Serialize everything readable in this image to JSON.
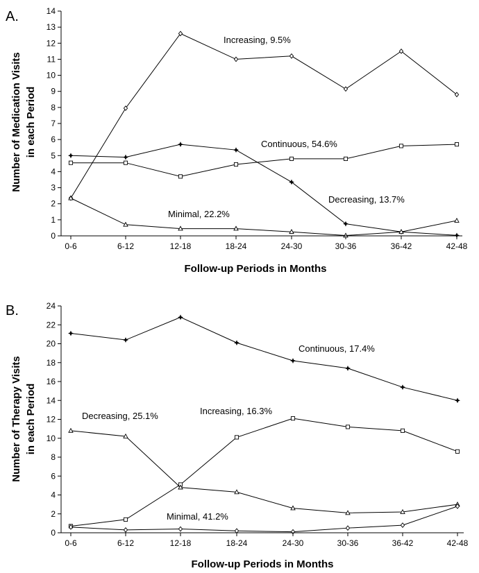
{
  "chart_data": [
    {
      "panel_label": "A.",
      "type": "line",
      "xlabel": "Follow-up Periods in Months",
      "ylabel_line1": "Number of Medication Visits",
      "ylabel_line2": "in each Period",
      "categories": [
        "0-6",
        "6-12",
        "12-18",
        "18-24",
        "24-30",
        "30-36",
        "36-42",
        "42-48"
      ],
      "ylim": [
        0,
        14
      ],
      "yticks": [
        0,
        1,
        2,
        3,
        4,
        5,
        6,
        7,
        8,
        9,
        10,
        11,
        12,
        13,
        14
      ],
      "grid": false,
      "series": [
        {
          "name": "Increasing, 9.5%",
          "marker": "diamond",
          "values": [
            2.35,
            7.95,
            12.6,
            11.0,
            11.2,
            9.15,
            11.5,
            8.8
          ]
        },
        {
          "name": "Continuous, 54.6%",
          "marker": "square",
          "values": [
            4.55,
            4.55,
            3.7,
            4.45,
            4.8,
            4.8,
            5.6,
            5.7
          ]
        },
        {
          "name": "Decreasing, 13.7%",
          "marker": "star",
          "values": [
            5.0,
            4.9,
            5.7,
            5.35,
            3.35,
            0.75,
            0.25,
            0.03
          ]
        },
        {
          "name": "Minimal, 22.2%",
          "marker": "triangle",
          "values": [
            2.35,
            0.7,
            0.45,
            0.45,
            0.25,
            0.02,
            0.25,
            0.95
          ]
        }
      ]
    },
    {
      "panel_label": "B.",
      "type": "line",
      "xlabel": "Follow-up Periods in Months",
      "ylabel_line1": "Number of Therapy Visits",
      "ylabel_line2": "in each Period",
      "categories": [
        "0-6",
        "6-12",
        "12-18",
        "18-24",
        "24-30",
        "30-36",
        "36-42",
        "42-48"
      ],
      "ylim": [
        0,
        24
      ],
      "yticks": [
        0,
        2,
        4,
        6,
        8,
        10,
        12,
        14,
        16,
        18,
        20,
        22,
        24
      ],
      "grid": false,
      "series": [
        {
          "name": "Continuous, 17.4%",
          "marker": "star",
          "values": [
            21.1,
            20.4,
            22.8,
            20.1,
            18.2,
            17.4,
            15.4,
            14.0
          ]
        },
        {
          "name": "Increasing, 16.3%",
          "marker": "square",
          "values": [
            0.7,
            1.4,
            5.1,
            10.1,
            12.1,
            11.2,
            10.8,
            8.6
          ]
        },
        {
          "name": "Decreasing, 25.1%",
          "marker": "triangle",
          "values": [
            10.8,
            10.2,
            4.8,
            4.3,
            2.6,
            2.1,
            2.2,
            3.0
          ]
        },
        {
          "name": "Minimal, 41.2%",
          "marker": "diamond",
          "values": [
            0.6,
            0.3,
            0.4,
            0.2,
            0.1,
            0.5,
            0.8,
            2.8
          ]
        }
      ]
    }
  ]
}
